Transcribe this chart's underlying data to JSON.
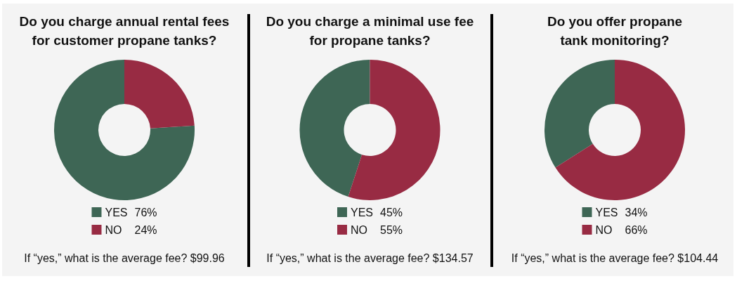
{
  "chart_data": [
    {
      "type": "donut",
      "title": "Do you charge annual rental fees\nfor customer propane tanks?",
      "categories": [
        "YES",
        "NO"
      ],
      "values": [
        76,
        24
      ],
      "value_labels": [
        "76%",
        "24%"
      ],
      "colors": [
        "#3e6655",
        "#982b43"
      ],
      "legend": "bottom",
      "annotations": [
        "If “yes,” what is the average fee? $99.96"
      ]
    },
    {
      "type": "donut",
      "title": "Do you charge a minimal use fee\nfor propane tanks?",
      "categories": [
        "YES",
        "NO"
      ],
      "values": [
        45,
        55
      ],
      "value_labels": [
        "45%",
        "55%"
      ],
      "colors": [
        "#3e6655",
        "#982b43"
      ],
      "legend": "bottom",
      "annotations": [
        "If “yes,” what is the average fee? $134.57"
      ]
    },
    {
      "type": "donut",
      "title": "Do you offer propane\ntank monitoring?",
      "categories": [
        "YES",
        "NO"
      ],
      "values": [
        34,
        66
      ],
      "value_labels": [
        "34%",
        "66%"
      ],
      "colors": [
        "#3e6655",
        "#982b43"
      ],
      "legend": "bottom",
      "annotations": [
        "If “yes,” what is the average fee? $104.44"
      ]
    }
  ]
}
